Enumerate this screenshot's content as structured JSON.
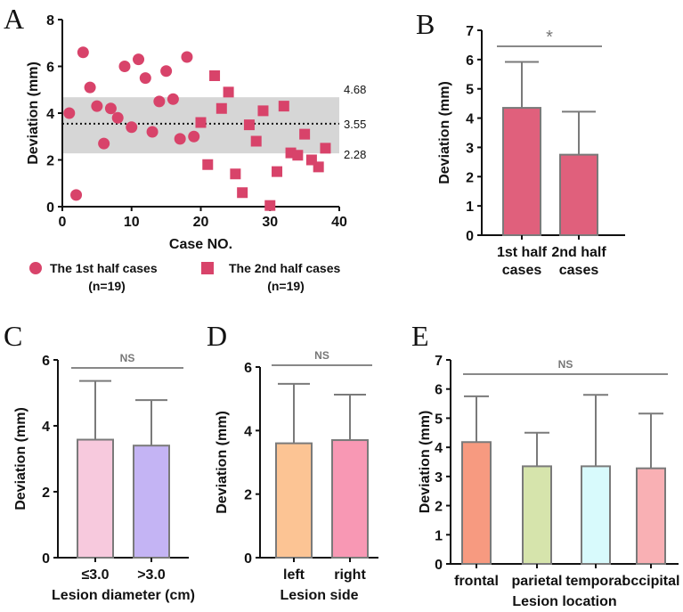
{
  "chart_data": [
    {
      "panel": "A",
      "type": "scatter",
      "xlabel": "Case NO.",
      "ylabel": "Deviation  (mm)",
      "xlim": [
        0,
        40
      ],
      "ylim": [
        0,
        8
      ],
      "xticks": [
        "0",
        "10",
        "20",
        "30",
        "40"
      ],
      "yticks": [
        "0",
        "2",
        "4",
        "6",
        "8"
      ],
      "band": {
        "upper": 4.68,
        "mean": 3.55,
        "lower": 2.28,
        "upper_label": "4.68",
        "mean_label": "3.55",
        "lower_label": "2.28"
      },
      "series": [
        {
          "name": "The 1st half cases",
          "subname": "(n=19)",
          "marker": "circle",
          "color": "#d8436a",
          "x": [
            1,
            2,
            3,
            4,
            5,
            6,
            7,
            8,
            9,
            10,
            11,
            12,
            13,
            14,
            15,
            16,
            17,
            18,
            19
          ],
          "y": [
            4.0,
            0.5,
            6.6,
            5.1,
            4.3,
            2.7,
            4.2,
            3.8,
            6.0,
            3.4,
            6.3,
            5.5,
            3.2,
            4.5,
            5.8,
            4.6,
            2.9,
            6.4,
            3.0
          ]
        },
        {
          "name": "The 2nd half cases",
          "subname": "(n=19)",
          "marker": "square",
          "color": "#d8436a",
          "x": [
            20,
            21,
            22,
            23,
            24,
            25,
            26,
            27,
            28,
            29,
            30,
            31,
            32,
            33,
            34,
            35,
            36,
            37,
            38
          ],
          "y": [
            3.6,
            1.8,
            5.6,
            4.2,
            4.9,
            1.4,
            0.6,
            3.5,
            2.8,
            4.1,
            0.05,
            1.5,
            4.3,
            2.3,
            2.2,
            3.1,
            2.0,
            1.7,
            2.5
          ]
        }
      ]
    },
    {
      "panel": "B",
      "type": "bar",
      "categories": [
        [
          "1st half",
          "cases"
        ],
        [
          "2nd half",
          "cases"
        ]
      ],
      "values": [
        4.35,
        2.75
      ],
      "errors": [
        1.57,
        1.47
      ],
      "colors": [
        "#e0607c",
        "#e0607c"
      ],
      "ylabel": "Deviation  (mm)",
      "xlabel": "",
      "ylim": [
        0,
        7
      ],
      "yticks": [
        "0",
        "1",
        "2",
        "3",
        "4",
        "5",
        "6",
        "7"
      ],
      "annotation": "*"
    },
    {
      "panel": "C",
      "type": "bar",
      "categories": [
        [
          "≤3.0"
        ],
        [
          ">3.0"
        ]
      ],
      "values": [
        3.58,
        3.4
      ],
      "errors": [
        1.78,
        1.38
      ],
      "colors": [
        "#f7c9dd",
        "#c4b4f4"
      ],
      "ylabel": "Deviation  (mm)",
      "xlabel": "Lesion diameter (cm)",
      "ylim": [
        0,
        6
      ],
      "yticks": [
        "0",
        "2",
        "4",
        "6"
      ],
      "annotation": "NS"
    },
    {
      "panel": "D",
      "type": "bar",
      "categories": [
        [
          "left"
        ],
        [
          "right"
        ]
      ],
      "values": [
        3.6,
        3.7
      ],
      "errors": [
        1.87,
        1.43
      ],
      "colors": [
        "#fcc494",
        "#f898b4"
      ],
      "ylabel": "Deviation  (mm)",
      "xlabel": "Lesion side",
      "ylim": [
        0,
        6
      ],
      "yticks": [
        "0",
        "2",
        "4",
        "6"
      ],
      "annotation": "NS"
    },
    {
      "panel": "E",
      "type": "bar",
      "categories": [
        [
          "frontal"
        ],
        [
          "parietal"
        ],
        [
          "temporal"
        ],
        [
          "occipital"
        ]
      ],
      "values": [
        4.18,
        3.35,
        3.35,
        3.28
      ],
      "errors": [
        1.57,
        1.15,
        2.45,
        1.88
      ],
      "colors": [
        "#f79a80",
        "#d6e4ac",
        "#d8fafc",
        "#f9b0b4"
      ],
      "ylabel": "Deviation  (mm)",
      "xlabel": "Lesion location",
      "ylim": [
        0,
        7
      ],
      "yticks": [
        "0",
        "1",
        "2",
        "3",
        "4",
        "5",
        "6",
        "7"
      ],
      "annotation": "NS"
    }
  ]
}
